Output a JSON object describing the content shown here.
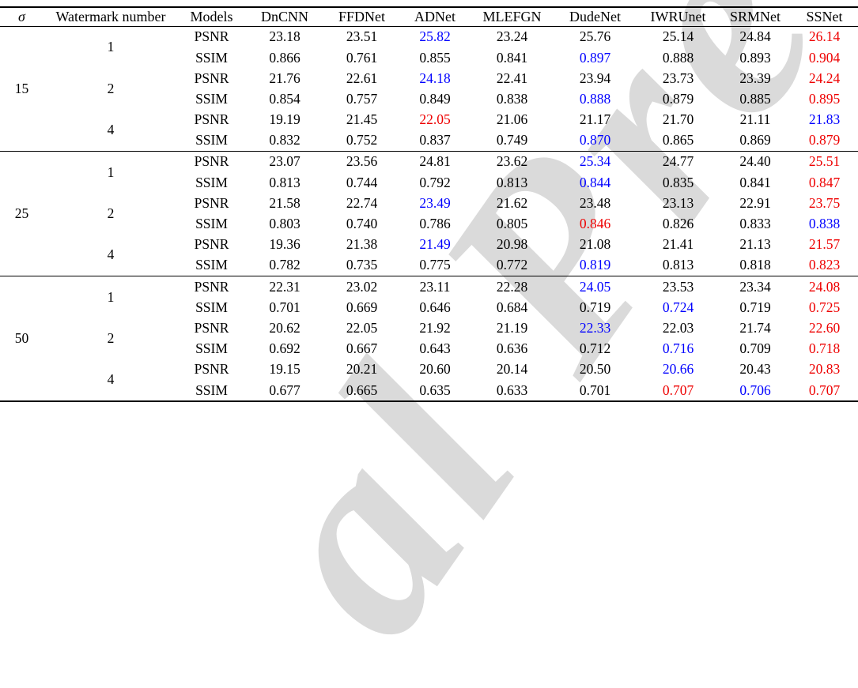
{
  "colors": {
    "best": "#ee0000",
    "second_best": "#0000ff",
    "text": "#000000",
    "rule": "#000000",
    "watermark": "#dadada"
  },
  "watermark": {
    "text": "al Pre"
  },
  "table": {
    "columns": [
      "σ",
      "Watermark number",
      "Models",
      "DnCNN",
      "FFDNet",
      "ADNet",
      "MLEFGN",
      "DudeNet",
      "IWRUnet",
      "SRMNet",
      "SSNet"
    ],
    "groups": [
      {
        "sigma": "15",
        "blocks": [
          {
            "watermark_number": "1",
            "rows": [
              {
                "metric": "PSNR",
                "values": [
                  "23.18",
                  "23.51",
                  "25.82",
                  "23.24",
                  "25.76",
                  "25.14",
                  "24.84",
                  "26.14"
                ],
                "styles": [
                  "k",
                  "k",
                  "b",
                  "k",
                  "k",
                  "k",
                  "k",
                  "r"
                ]
              },
              {
                "metric": "SSIM",
                "values": [
                  "0.866",
                  "0.761",
                  "0.855",
                  "0.841",
                  "0.897",
                  "0.888",
                  "0.893",
                  "0.904"
                ],
                "styles": [
                  "k",
                  "k",
                  "k",
                  "k",
                  "b",
                  "k",
                  "k",
                  "r"
                ]
              }
            ]
          },
          {
            "watermark_number": "2",
            "rows": [
              {
                "metric": "PSNR",
                "values": [
                  "21.76",
                  "22.61",
                  "24.18",
                  "22.41",
                  "23.94",
                  "23.73",
                  "23.39",
                  "24.24"
                ],
                "styles": [
                  "k",
                  "k",
                  "b",
                  "k",
                  "k",
                  "k",
                  "k",
                  "r"
                ]
              },
              {
                "metric": "SSIM",
                "values": [
                  "0.854",
                  "0.757",
                  "0.849",
                  "0.838",
                  "0.888",
                  "0.879",
                  "0.885",
                  "0.895"
                ],
                "styles": [
                  "k",
                  "k",
                  "k",
                  "k",
                  "b",
                  "k",
                  "k",
                  "r"
                ]
              }
            ]
          },
          {
            "watermark_number": "4",
            "rows": [
              {
                "metric": "PSNR",
                "values": [
                  "19.19",
                  "21.45",
                  "22.05",
                  "21.06",
                  "21.17",
                  "21.70",
                  "21.11",
                  "21.83"
                ],
                "styles": [
                  "k",
                  "k",
                  "r",
                  "k",
                  "k",
                  "k",
                  "k",
                  "b"
                ]
              },
              {
                "metric": "SSIM",
                "values": [
                  "0.832",
                  "0.752",
                  "0.837",
                  "0.749",
                  "0.870",
                  "0.865",
                  "0.869",
                  "0.879"
                ],
                "styles": [
                  "k",
                  "k",
                  "k",
                  "k",
                  "b",
                  "k",
                  "k",
                  "r"
                ]
              }
            ]
          }
        ]
      },
      {
        "sigma": "25",
        "blocks": [
          {
            "watermark_number": "1",
            "rows": [
              {
                "metric": "PSNR",
                "values": [
                  "23.07",
                  "23.56",
                  "24.81",
                  "23.62",
                  "25.34",
                  "24.77",
                  "24.40",
                  "25.51"
                ],
                "styles": [
                  "k",
                  "k",
                  "k",
                  "k",
                  "b",
                  "k",
                  "k",
                  "r"
                ]
              },
              {
                "metric": "SSIM",
                "values": [
                  "0.813",
                  "0.744",
                  "0.792",
                  "0.813",
                  "0.844",
                  "0.835",
                  "0.841",
                  "0.847"
                ],
                "styles": [
                  "k",
                  "k",
                  "k",
                  "k",
                  "b",
                  "k",
                  "k",
                  "r"
                ]
              }
            ]
          },
          {
            "watermark_number": "2",
            "rows": [
              {
                "metric": "PSNR",
                "values": [
                  "21.58",
                  "22.74",
                  "23.49",
                  "21.62",
                  "23.48",
                  "23.13",
                  "22.91",
                  "23.75"
                ],
                "styles": [
                  "k",
                  "k",
                  "b",
                  "k",
                  "k",
                  "k",
                  "k",
                  "r"
                ]
              },
              {
                "metric": "SSIM",
                "values": [
                  "0.803",
                  "0.740",
                  "0.786",
                  "0.805",
                  "0.846",
                  "0.826",
                  "0.833",
                  "0.838"
                ],
                "styles": [
                  "k",
                  "k",
                  "k",
                  "k",
                  "r",
                  "k",
                  "k",
                  "b"
                ]
              }
            ]
          },
          {
            "watermark_number": "4",
            "rows": [
              {
                "metric": "PSNR",
                "values": [
                  "19.36",
                  "21.38",
                  "21.49",
                  "20.98",
                  "21.08",
                  "21.41",
                  "21.13",
                  "21.57"
                ],
                "styles": [
                  "k",
                  "k",
                  "b",
                  "k",
                  "k",
                  "k",
                  "k",
                  "r"
                ]
              },
              {
                "metric": "SSIM",
                "values": [
                  "0.782",
                  "0.735",
                  "0.775",
                  "0.772",
                  "0.819",
                  "0.813",
                  "0.818",
                  "0.823"
                ],
                "styles": [
                  "k",
                  "k",
                  "k",
                  "k",
                  "b",
                  "k",
                  "k",
                  "r"
                ]
              }
            ]
          }
        ]
      },
      {
        "sigma": "50",
        "blocks": [
          {
            "watermark_number": "1",
            "rows": [
              {
                "metric": "PSNR",
                "values": [
                  "22.31",
                  "23.02",
                  "23.11",
                  "22.28",
                  "24.05",
                  "23.53",
                  "23.34",
                  "24.08"
                ],
                "styles": [
                  "k",
                  "k",
                  "k",
                  "k",
                  "b",
                  "k",
                  "k",
                  "r"
                ]
              },
              {
                "metric": "SSIM",
                "values": [
                  "0.701",
                  "0.669",
                  "0.646",
                  "0.684",
                  "0.719",
                  "0.724",
                  "0.719",
                  "0.725"
                ],
                "styles": [
                  "k",
                  "k",
                  "k",
                  "k",
                  "k",
                  "b",
                  "k",
                  "r"
                ]
              }
            ]
          },
          {
            "watermark_number": "2",
            "rows": [
              {
                "metric": "PSNR",
                "values": [
                  "20.62",
                  "22.05",
                  "21.92",
                  "21.19",
                  "22.33",
                  "22.03",
                  "21.74",
                  "22.60"
                ],
                "styles": [
                  "k",
                  "k",
                  "k",
                  "k",
                  "b",
                  "k",
                  "k",
                  "r"
                ]
              },
              {
                "metric": "SSIM",
                "values": [
                  "0.692",
                  "0.667",
                  "0.643",
                  "0.636",
                  "0.712",
                  "0.716",
                  "0.709",
                  "0.718"
                ],
                "styles": [
                  "k",
                  "k",
                  "k",
                  "k",
                  "k",
                  "b",
                  "k",
                  "r"
                ]
              }
            ]
          },
          {
            "watermark_number": "4",
            "rows": [
              {
                "metric": "PSNR",
                "values": [
                  "19.15",
                  "20.21",
                  "20.60",
                  "20.14",
                  "20.50",
                  "20.66",
                  "20.43",
                  "20.83"
                ],
                "styles": [
                  "k",
                  "k",
                  "k",
                  "k",
                  "k",
                  "b",
                  "k",
                  "r"
                ]
              },
              {
                "metric": "SSIM",
                "values": [
                  "0.677",
                  "0.665",
                  "0.635",
                  "0.633",
                  "0.701",
                  "0.707",
                  "0.706",
                  "0.707"
                ],
                "styles": [
                  "k",
                  "k",
                  "k",
                  "k",
                  "k",
                  "r",
                  "b",
                  "r"
                ]
              }
            ]
          }
        ]
      }
    ]
  }
}
